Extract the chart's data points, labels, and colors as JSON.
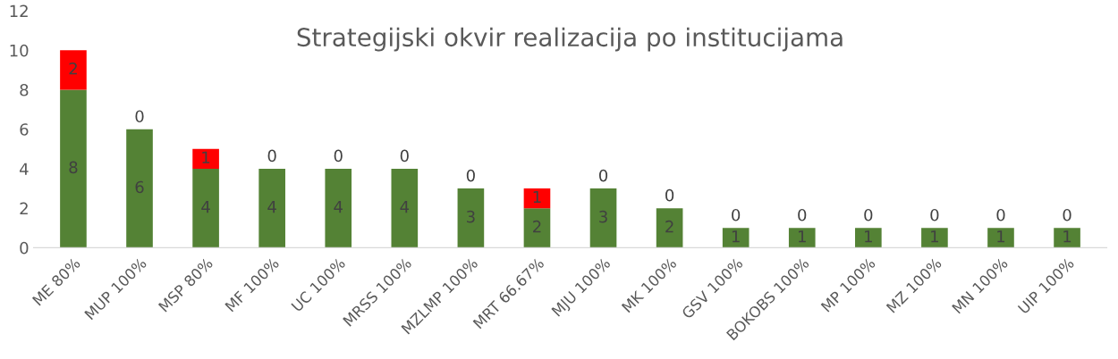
{
  "chart_data": {
    "type": "bar",
    "title": "Strategijski okvir realizacija po institucijama",
    "categories": [
      "ME 80%",
      "MUP 100%",
      "MSP 80%",
      "MF 100%",
      "UC 100%",
      "MRSS 100%",
      "MZLMP 100%",
      "MRT 66.67%",
      "MJU 100%",
      "MK 100%",
      "GSV 100%",
      "BOKOBS 100%",
      "MP 100%",
      "MZ 100%",
      "MN 100%",
      "UIP 100%"
    ],
    "series": [
      {
        "color": "#548235",
        "values": [
          8,
          6,
          4,
          4,
          4,
          4,
          3,
          2,
          3,
          2,
          1,
          1,
          1,
          1,
          1,
          1
        ]
      },
      {
        "color": "#ff0000",
        "values": [
          2,
          0,
          1,
          0,
          0,
          0,
          0,
          1,
          0,
          0,
          0,
          0,
          0,
          0,
          0,
          0
        ]
      }
    ],
    "stacked": true,
    "data_labels": true,
    "ylim": [
      0,
      12
    ],
    "yticks": [
      0,
      2,
      4,
      6,
      8,
      10,
      12
    ],
    "grid": false
  }
}
